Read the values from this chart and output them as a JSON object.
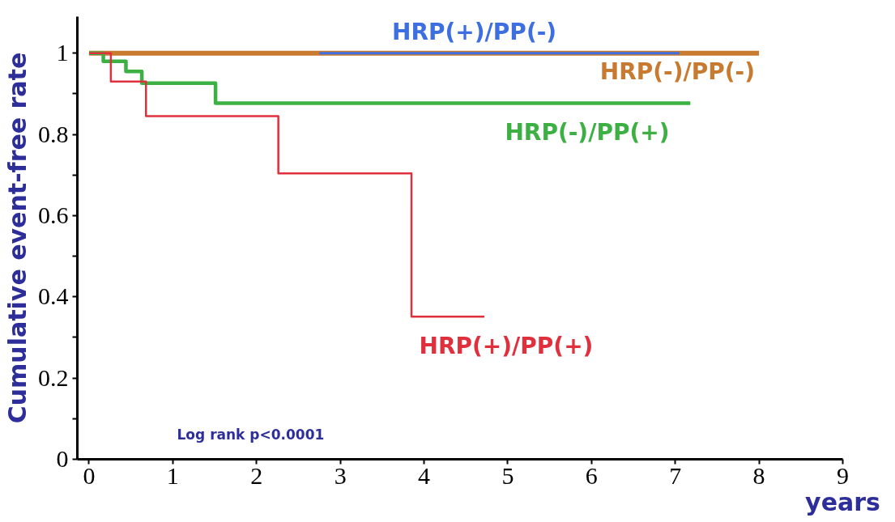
{
  "chart_data": {
    "type": "step",
    "ylabel": "Cumulative event-free rate",
    "xlabel": "years",
    "xlim": [
      -0.14,
      9
    ],
    "ylim": [
      0,
      1.09
    ],
    "xticks": [
      0,
      1,
      2,
      3,
      4,
      5,
      6,
      7,
      8,
      9
    ],
    "yticks": [
      0,
      {
        "value": 0.1,
        "label": null
      },
      0.2,
      {
        "value": 0.3,
        "label": null
      },
      0.4,
      {
        "value": 0.5,
        "label": null
      },
      0.6,
      {
        "value": 0.7,
        "label": null
      },
      0.8,
      {
        "value": 0.9,
        "label": null
      },
      1
    ],
    "grid": false,
    "line_style": "solid",
    "marker": "none",
    "annotations": [
      "Log rank p<0.0001"
    ],
    "series": [
      {
        "name": "HRP(-)/PP(-)",
        "color": "#c87a30",
        "x": [
          0,
          8.0
        ],
        "values": [
          1,
          1
        ]
      },
      {
        "name": "HRP(+)/PP(-)",
        "color": "#3d6fe0",
        "x": [
          2.75,
          7.05
        ],
        "values": [
          1,
          1
        ]
      },
      {
        "name": "HRP(-)/PP(+)",
        "color": "#3cb043",
        "x": [
          0,
          0.17,
          0.44,
          0.63,
          1.51,
          7.18
        ],
        "values": [
          1,
          0.98,
          0.955,
          0.926,
          0.877,
          0.877
        ]
      },
      {
        "name": "HRP(+)/PP(+)",
        "color": "#e0303e",
        "x": [
          0,
          0.26,
          0.68,
          2.26,
          3.85,
          4.72
        ],
        "values": [
          1,
          0.93,
          0.845,
          0.704,
          0.351,
          0.351
        ]
      }
    ]
  }
}
